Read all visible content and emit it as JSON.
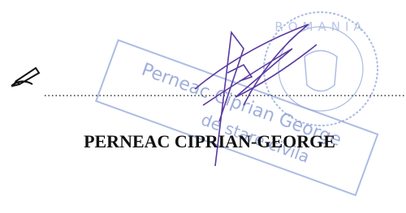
{
  "signatory": "PERNEAC CIPRIAN-GEORGE",
  "round_stamp": "ROMANIA",
  "rect_stamp": [
    "Perneac Ciprian George",
    "de stare civila"
  ]
}
